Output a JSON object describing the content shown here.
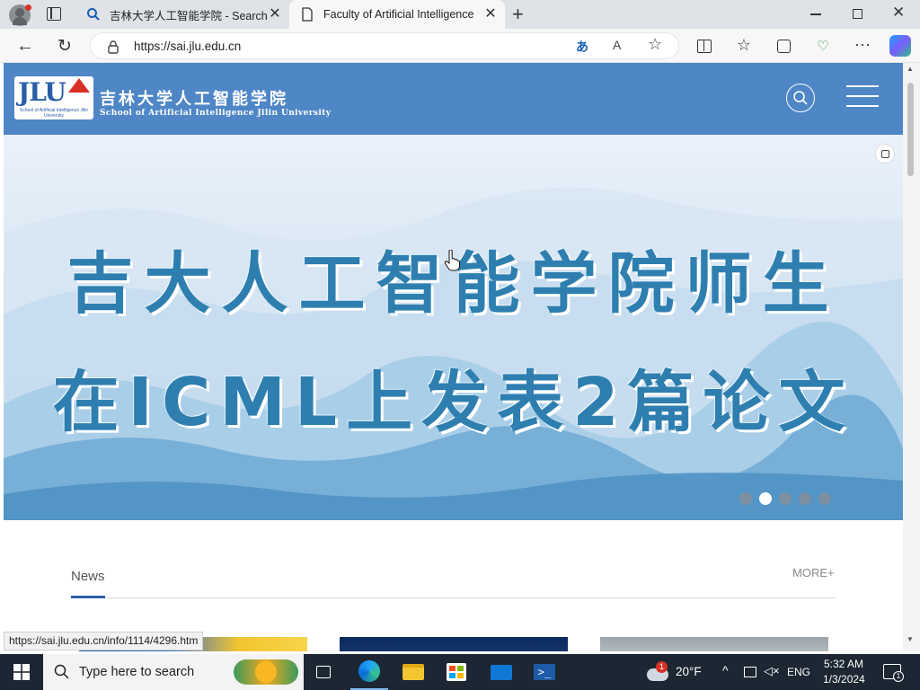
{
  "browser": {
    "tabs": [
      {
        "title": "吉林大学人工智能学院 - Search",
        "active": false
      },
      {
        "title": "Faculty of Artificial Intelligence",
        "active": true
      }
    ],
    "url": "https://sai.jlu.edu.cn",
    "status_url": "https://sai.jlu.edu.cn/info/1114/4296.htm"
  },
  "site": {
    "logo_text": "JLU",
    "logo_sub": "School of Artificial Intelligence Jilin University",
    "name_cn": "吉林大学人工智能学院",
    "name_en": "School of Artificial Intelligence Jilin University"
  },
  "hero": {
    "line1": "吉大人工智能学院师生",
    "line2": "在ICML上发表2篇论文",
    "slide_count": 5,
    "active_slide": 2
  },
  "news": {
    "title": "News",
    "more": "MORE+"
  },
  "taskbar": {
    "search_placeholder": "Type here to search",
    "weather": "20°F",
    "weather_badge": "1",
    "lang": "ENG",
    "time": "5:32 AM",
    "date": "1/3/2024",
    "notif_count": "1"
  },
  "colors": {
    "header_bg": "#4f86c6",
    "headline": "#2e7fb0",
    "accent": "#2a5da8"
  }
}
